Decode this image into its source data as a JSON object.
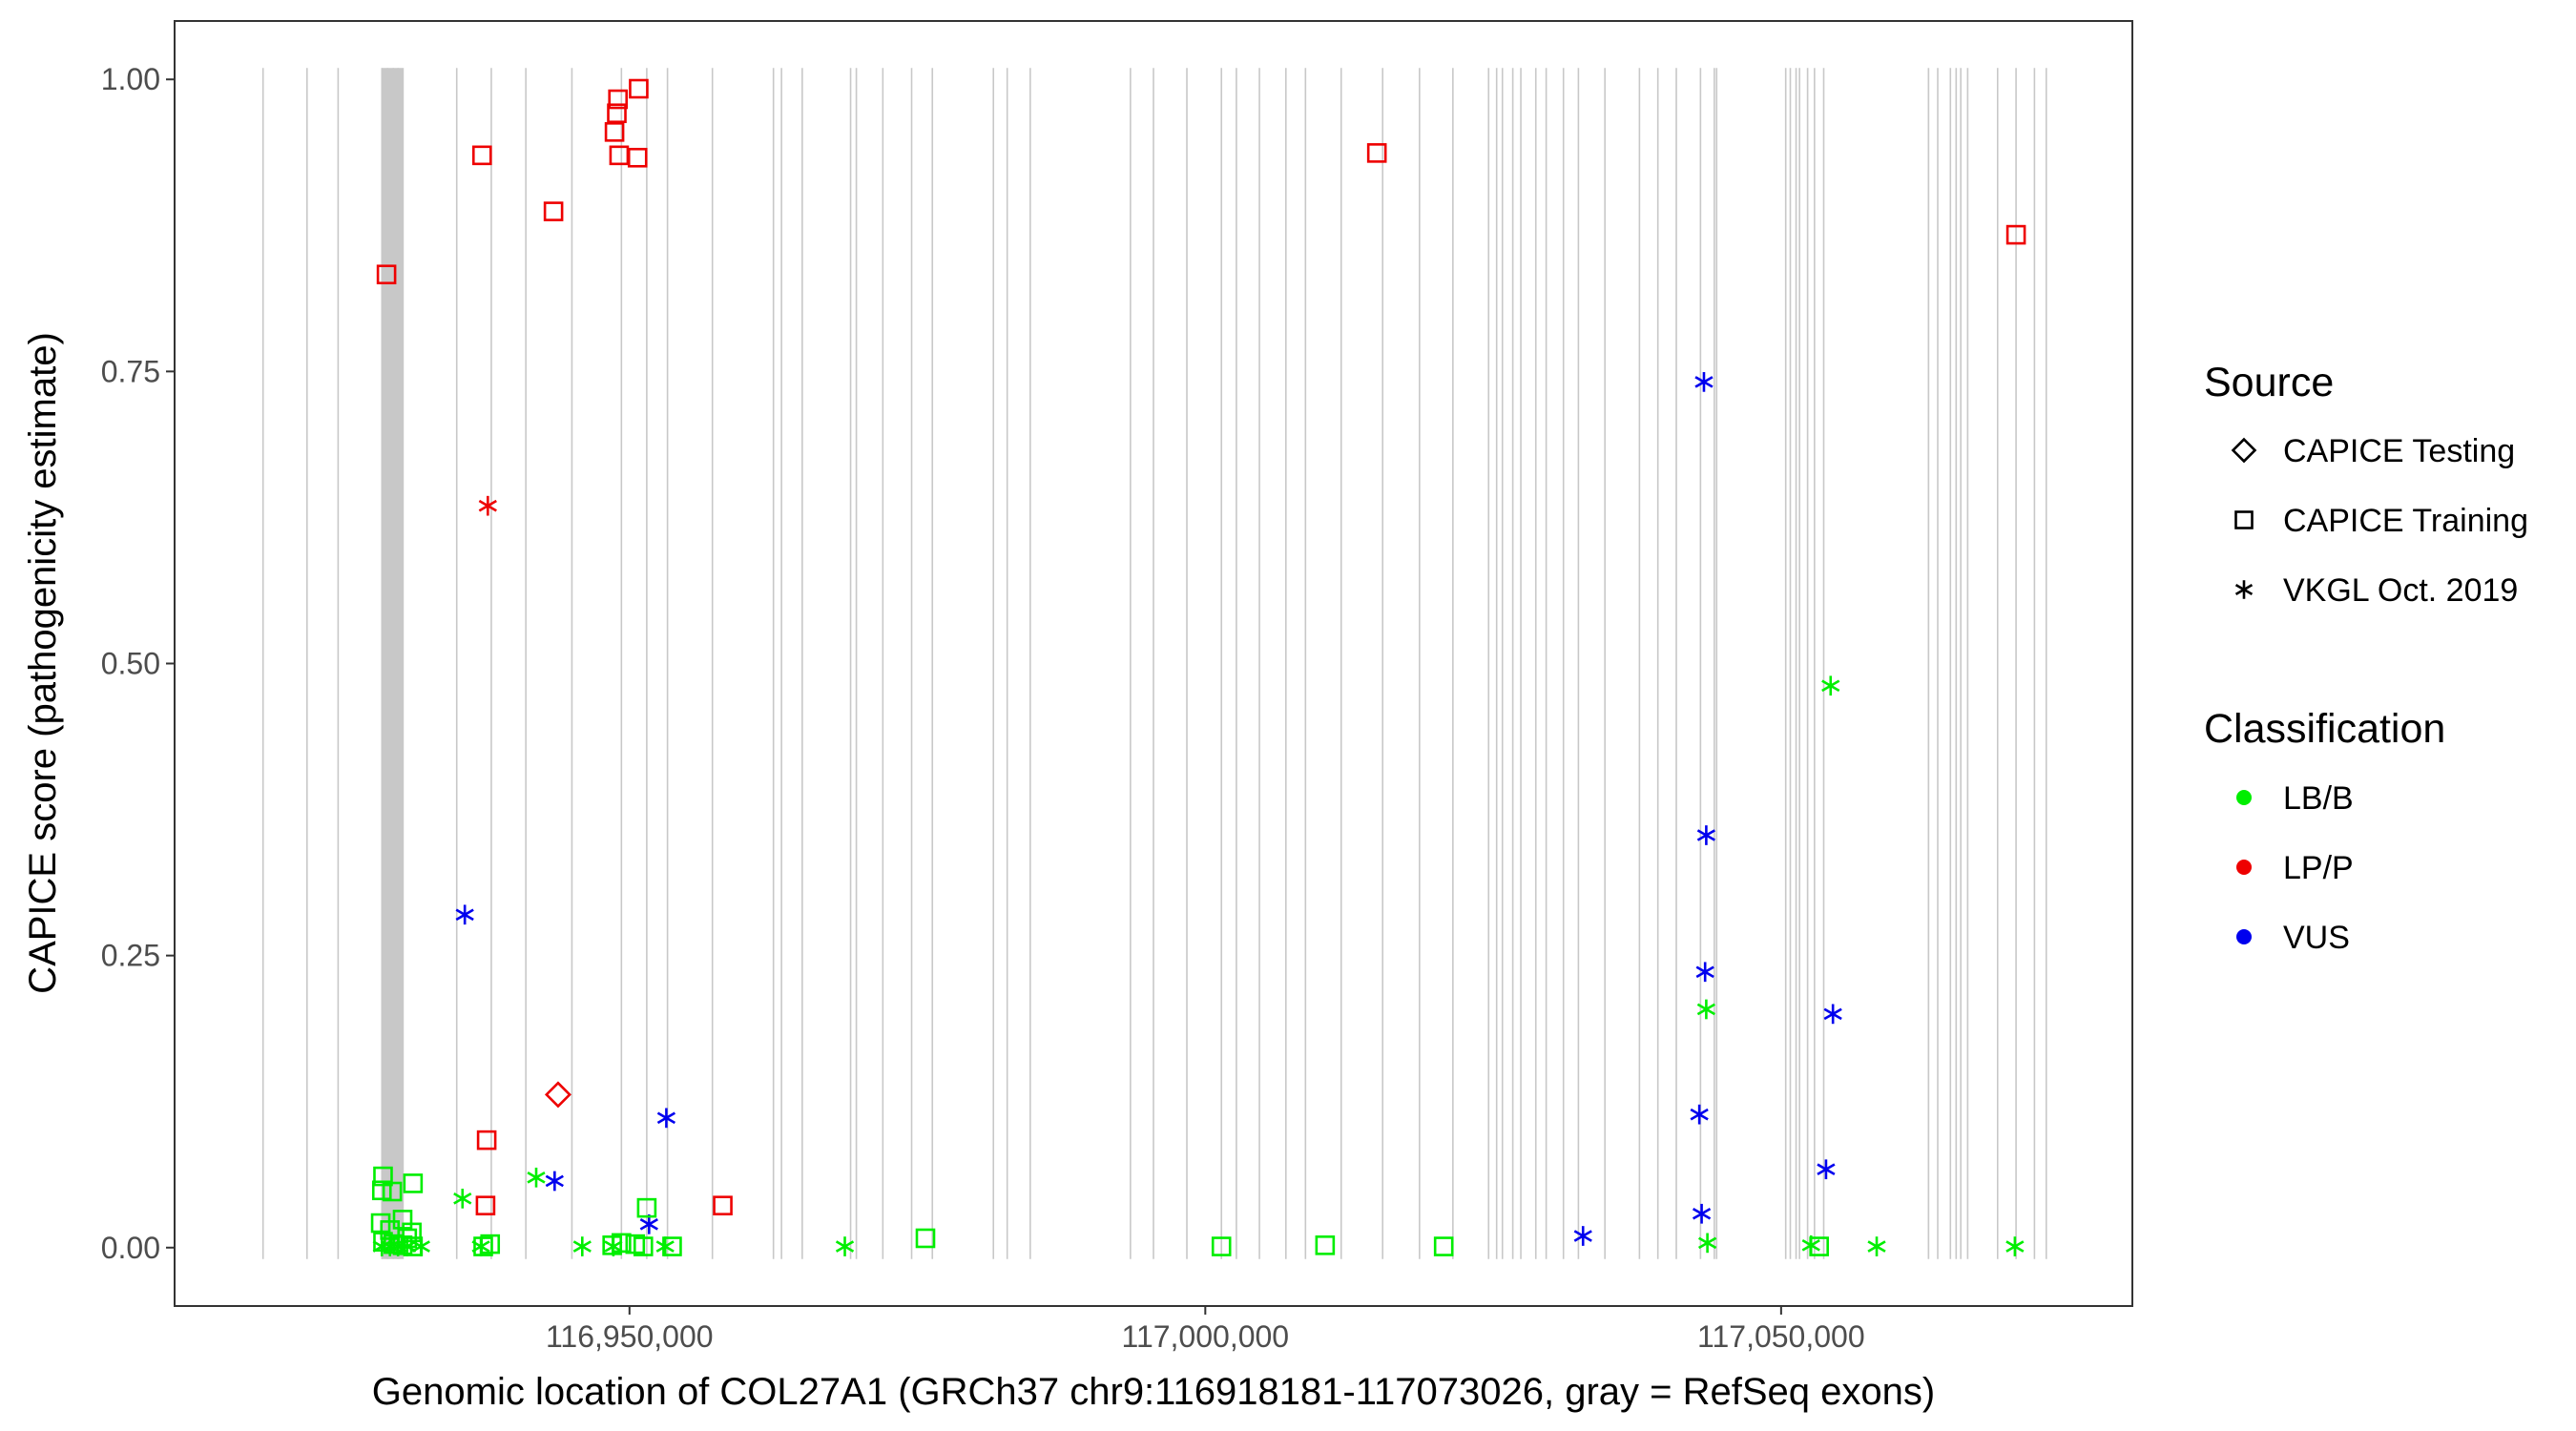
{
  "chart_data": {
    "type": "scatter",
    "title": "",
    "xlabel": "Genomic location of COL27A1 (GRCh37 chr9:116918181-117073026, gray = RefSeq exons)",
    "ylabel": "CAPICE score (pathogenicity estimate)",
    "xlim": [
      116910500,
      117080500
    ],
    "ylim": [
      -0.05,
      1.05
    ],
    "x_ticks": [
      116950000,
      117000000,
      117050000
    ],
    "x_tick_labels": [
      "116,950,000",
      "117,000,000",
      "117,050,000"
    ],
    "y_ticks": [
      0,
      0.25,
      0.5,
      0.75,
      1
    ],
    "y_tick_labels": [
      "0.00",
      "0.25",
      "0.50",
      "0.75",
      "1.00"
    ],
    "grid": false,
    "exons": [
      116918181,
      116922000,
      116924700,
      116928500,
      116929000,
      116929500,
      116929900,
      116935000,
      116938000,
      116941000,
      116945000,
      116949300,
      116951500,
      116953300,
      116957200,
      116962500,
      116963200,
      116965000,
      116969200,
      116969700,
      116972000,
      116974500,
      116976300,
      116981600,
      116982800,
      116984800,
      116993500,
      116995500,
      116998400,
      117001400,
      117002700,
      117004700,
      117007000,
      117008700,
      117011800,
      117015400,
      117018600,
      117021500,
      117024600,
      117025300,
      117025800,
      117026700,
      117027400,
      117028700,
      117029600,
      117031100,
      117032400,
      117034700,
      117037700,
      117039300,
      117040900,
      117043000,
      117044200,
      117044400,
      117050400,
      117050800,
      117051300,
      117051600,
      117052300,
      117052900,
      117053700,
      117062800,
      117063600,
      117064700,
      117065200,
      117065600,
      117066200,
      117068800,
      117070400,
      117072000,
      117073026
    ],
    "exon_block": [
      116928500,
      116930400
    ],
    "legend": {
      "placement": "right",
      "source_title": "Source",
      "source_items": [
        {
          "label": "CAPICE Testing",
          "shape": "diamond"
        },
        {
          "label": "CAPICE Training",
          "shape": "square"
        },
        {
          "label": "VKGL Oct. 2019",
          "shape": "asterisk"
        }
      ],
      "class_title": "Classification",
      "class_items": [
        {
          "label": "LB/B",
          "color": "#00ee00"
        },
        {
          "label": "LP/P",
          "color": "#ee0000"
        },
        {
          "label": "VUS",
          "color": "#0000ee"
        }
      ]
    },
    "series": [
      {
        "shape": "square",
        "color": "#ee0000",
        "points": [
          [
            116928900,
            0.833
          ],
          [
            116937200,
            0.935
          ],
          [
            116943400,
            0.887
          ],
          [
            116949000,
            0.983
          ],
          [
            116948900,
            0.971
          ],
          [
            116948700,
            0.955
          ],
          [
            116949100,
            0.935
          ],
          [
            116950800,
            0.992
          ],
          [
            116950700,
            0.933
          ],
          [
            116937600,
            0.092
          ],
          [
            116937500,
            0.036
          ],
          [
            116958100,
            0.036
          ],
          [
            117014900,
            0.937
          ],
          [
            117070400,
            0.867
          ]
        ]
      },
      {
        "shape": "diamond",
        "color": "#ee0000",
        "points": [
          [
            116943800,
            0.131
          ]
        ]
      },
      {
        "shape": "asterisk",
        "color": "#ee0000",
        "points": [
          [
            116937700,
            0.635
          ]
        ]
      },
      {
        "shape": "asterisk",
        "color": "#0000ee",
        "points": [
          [
            116935700,
            0.285
          ],
          [
            116943500,
            0.057
          ],
          [
            116953200,
            0.111
          ],
          [
            116951700,
            0.02
          ],
          [
            117032800,
            0.01
          ],
          [
            117043300,
            0.741
          ],
          [
            117043500,
            0.353
          ],
          [
            117043400,
            0.236
          ],
          [
            117042900,
            0.114
          ],
          [
            117043100,
            0.029
          ],
          [
            117054500,
            0.2
          ],
          [
            117053900,
            0.067
          ]
        ]
      },
      {
        "shape": "asterisk",
        "color": "#00ee00",
        "points": [
          [
            117054300,
            0.481
          ],
          [
            117043500,
            0.204
          ],
          [
            116935500,
            0.042
          ],
          [
            116941900,
            0.06
          ],
          [
            116928500,
            0.001
          ],
          [
            116929200,
            0.001
          ],
          [
            116929900,
            0.001
          ],
          [
            116930700,
            0.001
          ],
          [
            116931900,
            0.001
          ],
          [
            116937100,
            0.001
          ],
          [
            116945900,
            0.001
          ],
          [
            116948600,
            0.001
          ],
          [
            116953100,
            0.001
          ],
          [
            116968700,
            0.001
          ],
          [
            117043600,
            0.004
          ],
          [
            117052600,
            0.002
          ],
          [
            117058300,
            0.001
          ],
          [
            117070300,
            0.001
          ]
        ]
      },
      {
        "shape": "square",
        "color": "#00ee00",
        "points": [
          [
            116928600,
            0.061
          ],
          [
            116928500,
            0.049
          ],
          [
            116929400,
            0.048
          ],
          [
            116931200,
            0.055
          ],
          [
            116930300,
            0.024
          ],
          [
            116928400,
            0.021
          ],
          [
            116929200,
            0.015
          ],
          [
            116931100,
            0.013
          ],
          [
            116930700,
            0.008
          ],
          [
            116928600,
            0.005
          ],
          [
            116929500,
            0.003
          ],
          [
            116930300,
            0.002
          ],
          [
            116931200,
            0.001
          ],
          [
            116937300,
            0.001
          ],
          [
            116937900,
            0.003
          ],
          [
            116948500,
            0.002
          ],
          [
            116949300,
            0.004
          ],
          [
            116950500,
            0.003
          ],
          [
            116951500,
            0.034
          ],
          [
            116951200,
            0.001
          ],
          [
            116953700,
            0.001
          ],
          [
            116975700,
            0.008
          ],
          [
            117001400,
            0.001
          ],
          [
            117010400,
            0.002
          ],
          [
            117020700,
            0.001
          ],
          [
            117053300,
            0.001
          ]
        ]
      }
    ]
  }
}
